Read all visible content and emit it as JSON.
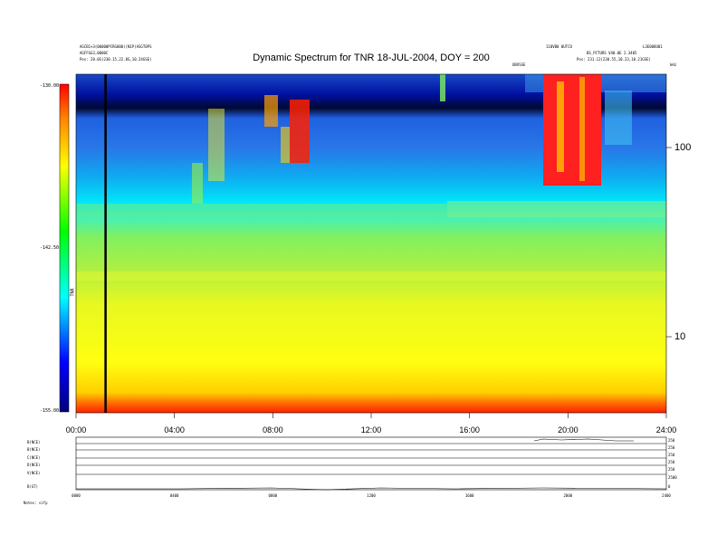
{
  "header": {
    "left_line1": "AGCB1+3(00000PCRG000)(N1P)ASGT0PS",
    "left_line2": "AGFFGG3,0000C",
    "left_line3": "Pos: 20.0S(230.15,22.0S,10.24GSE)",
    "right_line1": "110VB0 0UTCO",
    "right_line1b": "L3E000U01",
    "right_line2": "BS_PCTURS V40.0E 2.3405",
    "right_line3": "Pos: 231.12(230.55,10.23,10.21GSE)",
    "marker_label": "OBVSSE",
    "corner_label": "kHz"
  },
  "chart_data": {
    "type": "heatmap",
    "title": "Dynamic Spectrum for TNR 18-JUL-2004, DOY = 200",
    "x_tick_labels": [
      "00:00",
      "04:00",
      "08:00",
      "12:00",
      "16:00",
      "20:00",
      "24:00"
    ],
    "x_range_hours": [
      0,
      24
    ],
    "y_scale": "log",
    "y_tick_labels": [
      "100",
      "10"
    ],
    "y_range": [
      4,
      250
    ],
    "colorbar_ticks": [
      "-130.00",
      "-142.50",
      "-155.00"
    ],
    "colorbar_range": [
      -155,
      -130
    ],
    "colorbar_label": "TNR",
    "vertical_marker_hour": 1.2,
    "notes": "Spectral intensity rises toward low frequencies; intense emission bursts near 08:00–09:30 and 19:00–21:30 above ~60 kHz."
  },
  "subpanels": {
    "labels": [
      "B(NCE)",
      "B(NCE)",
      "C(NCE)",
      "D(NCE)",
      "V(NCE)",
      "B(GT)"
    ],
    "right_scales": [
      "250",
      "250",
      "250",
      "250",
      "250",
      "2500",
      "0"
    ],
    "x_tick_labels": [
      "0000",
      "0400",
      "0800",
      "1200",
      "1600",
      "2000",
      "2400"
    ],
    "footer": "Notes: sifp"
  }
}
